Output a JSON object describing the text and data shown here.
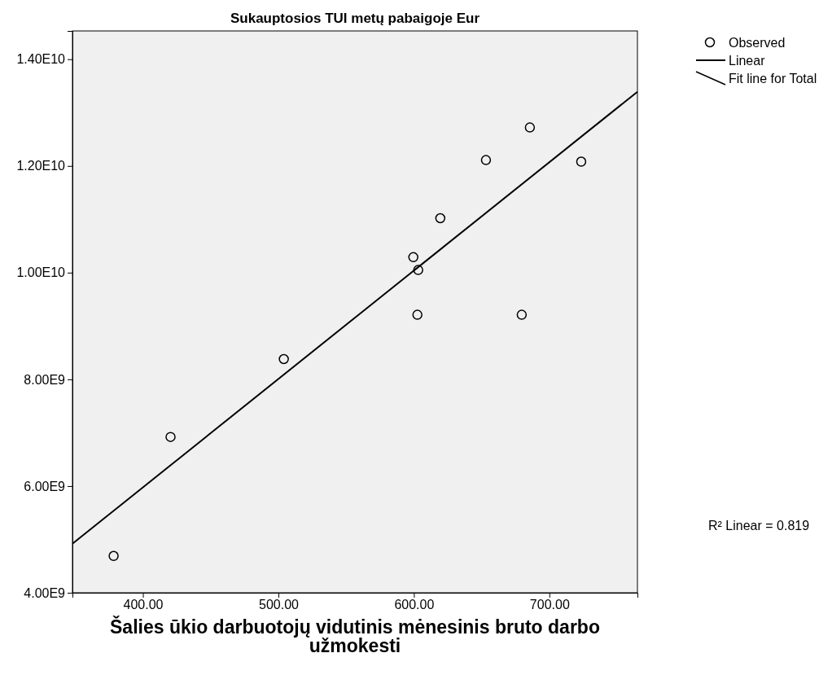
{
  "chart_data": {
    "type": "scatter",
    "title": "Sukauptosios TUI metų pabaigoje Eur",
    "xlabel": "Šalies ūkio darbuotojų vidutinis mėnesinis bruto darbo užmokesti",
    "xlim": [
      348,
      765
    ],
    "xticks": [
      {
        "value": 400,
        "label": "400.00"
      },
      {
        "value": 500,
        "label": "500.00"
      },
      {
        "value": 600,
        "label": "600.00"
      },
      {
        "value": 700,
        "label": "700.00"
      }
    ],
    "ylim": [
      4000000000,
      14530000000
    ],
    "yticks": [
      {
        "value": 4000000000,
        "label": "4.00E9"
      },
      {
        "value": 6000000000,
        "label": "6.00E9"
      },
      {
        "value": 8000000000,
        "label": "8.00E9"
      },
      {
        "value": 10000000000,
        "label": "1.00E10"
      },
      {
        "value": 12000000000,
        "label": "1.20E10"
      },
      {
        "value": 14000000000,
        "label": "1.40E10"
      }
    ],
    "grid": false,
    "legend": "right",
    "series": [
      {
        "name": "Observed",
        "marker": "circle",
        "color": "#000000",
        "x": [
          378.4,
          420.4,
          504.0,
          599.6,
          603.2,
          602.6,
          619.5,
          653.2,
          685.6,
          679.6,
          723.5
        ],
        "values": [
          4690000000,
          6920000000,
          8380000000,
          10290000000,
          10050000000,
          9210000000,
          11020000000,
          12110000000,
          12720000000,
          9210000000,
          12080000000
        ]
      },
      {
        "name": "Linear",
        "type": "line",
        "line_style": "solid",
        "color": "#000000",
        "x": [
          348,
          765
        ],
        "values": [
          4920000000,
          13390000000
        ]
      }
    ],
    "annotations": [
      "Fit line for Total",
      "R² Linear = 0.819"
    ]
  }
}
